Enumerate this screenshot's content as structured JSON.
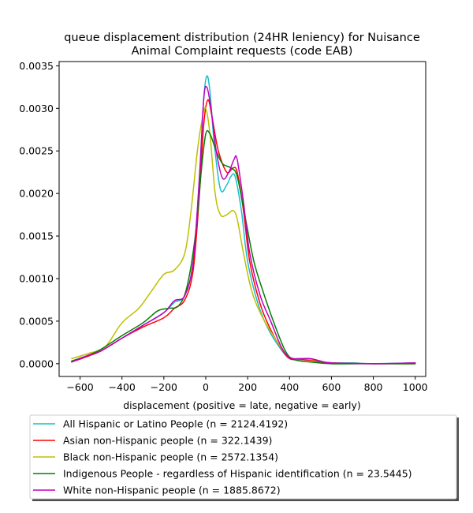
{
  "chart_data": {
    "type": "line",
    "title_lines": [
      "queue displacement distribution (24HR leniency) for Nuisance",
      "Animal Complaint  requests (code EAB)"
    ],
    "xlabel": "displacement (positive = late, negative = early)",
    "ylabel": "",
    "xlim": [
      -700,
      1050
    ],
    "ylim": [
      -0.00015,
      0.00355
    ],
    "x_ticks": [
      -600,
      -400,
      -200,
      0,
      200,
      400,
      600,
      800,
      1000
    ],
    "x_tick_labels": [
      "−600",
      "−400",
      "−200",
      "0",
      "200",
      "400",
      "600",
      "800",
      "1000"
    ],
    "y_ticks": [
      0.0,
      0.0005,
      0.001,
      0.0015,
      0.002,
      0.0025,
      0.003,
      0.0035
    ],
    "y_tick_labels": [
      "0.0000",
      "0.0005",
      "0.0010",
      "0.0015",
      "0.0020",
      "0.0025",
      "0.0030",
      "0.0035"
    ],
    "grid": false,
    "legend_position": "below the plot",
    "series": [
      {
        "name": "All Hispanic or Latino People (n = 2124.4192)",
        "color": "#17becf",
        "points": [
          [
            -640,
            3e-05
          ],
          [
            -560,
            0.0001
          ],
          [
            -500,
            0.00015
          ],
          [
            -400,
            0.0003
          ],
          [
            -300,
            0.00045
          ],
          [
            -200,
            0.0006
          ],
          [
            -150,
            0.00072
          ],
          [
            -100,
            0.0008
          ],
          [
            -60,
            0.0012
          ],
          [
            -30,
            0.0022
          ],
          [
            -10,
            0.0031
          ],
          [
            5,
            0.00338
          ],
          [
            20,
            0.0032
          ],
          [
            40,
            0.0026
          ],
          [
            70,
            0.00205
          ],
          [
            100,
            0.0021
          ],
          [
            120,
            0.0022
          ],
          [
            140,
            0.0022
          ],
          [
            170,
            0.0018
          ],
          [
            200,
            0.0012
          ],
          [
            250,
            0.0007
          ],
          [
            300,
            0.0004
          ],
          [
            350,
            0.0002
          ],
          [
            400,
            6e-05
          ],
          [
            450,
            5e-05
          ],
          [
            500,
            4e-05
          ],
          [
            550,
            2e-05
          ],
          [
            600,
            1e-05
          ],
          [
            700,
            1e-05
          ],
          [
            800,
            0.0
          ],
          [
            1000,
            1e-05
          ]
        ]
      },
      {
        "name": "Asian non-Hispanic people (n = 322.1439)",
        "color": "#ff0000",
        "points": [
          [
            -640,
            2e-05
          ],
          [
            -560,
            9e-05
          ],
          [
            -500,
            0.00015
          ],
          [
            -400,
            0.0003
          ],
          [
            -300,
            0.00043
          ],
          [
            -200,
            0.00054
          ],
          [
            -150,
            0.00065
          ],
          [
            -100,
            0.00075
          ],
          [
            -60,
            0.0011
          ],
          [
            -30,
            0.002
          ],
          [
            -10,
            0.0028
          ],
          [
            10,
            0.0031
          ],
          [
            30,
            0.0029
          ],
          [
            60,
            0.0025
          ],
          [
            100,
            0.00225
          ],
          [
            130,
            0.0023
          ],
          [
            150,
            0.00225
          ],
          [
            180,
            0.0018
          ],
          [
            210,
            0.0012
          ],
          [
            260,
            0.0007
          ],
          [
            310,
            0.0004
          ],
          [
            360,
            0.00018
          ],
          [
            400,
            6e-05
          ],
          [
            450,
            5e-05
          ],
          [
            500,
            4e-05
          ],
          [
            600,
            1e-05
          ],
          [
            800,
            0.0
          ],
          [
            1000,
            0.0
          ]
        ]
      },
      {
        "name": "Black non-Hispanic people (n = 2572.1354)",
        "color": "#bfbf00",
        "points": [
          [
            -640,
            6e-05
          ],
          [
            -560,
            0.00012
          ],
          [
            -480,
            0.0002
          ],
          [
            -400,
            0.00048
          ],
          [
            -320,
            0.00065
          ],
          [
            -260,
            0.00085
          ],
          [
            -200,
            0.00105
          ],
          [
            -150,
            0.0011
          ],
          [
            -100,
            0.0013
          ],
          [
            -70,
            0.0018
          ],
          [
            -40,
            0.0025
          ],
          [
            -15,
            0.0029
          ],
          [
            0,
            0.003
          ],
          [
            20,
            0.0027
          ],
          [
            45,
            0.002
          ],
          [
            70,
            0.00175
          ],
          [
            100,
            0.00175
          ],
          [
            130,
            0.0018
          ],
          [
            150,
            0.0017
          ],
          [
            180,
            0.0013
          ],
          [
            220,
            0.00085
          ],
          [
            270,
            0.00055
          ],
          [
            330,
            0.0003
          ],
          [
            380,
            0.00012
          ],
          [
            420,
            6e-05
          ],
          [
            470,
            6e-05
          ],
          [
            530,
            4e-05
          ],
          [
            600,
            1e-05
          ],
          [
            800,
            0.0
          ],
          [
            1000,
            0.0
          ]
        ]
      },
      {
        "name": "Indigenous People - regardless of Hispanic identification (n = 23.5445)",
        "color": "#008000",
        "points": [
          [
            -640,
            3e-05
          ],
          [
            -560,
            0.0001
          ],
          [
            -500,
            0.00017
          ],
          [
            -400,
            0.00033
          ],
          [
            -300,
            0.00048
          ],
          [
            -230,
            0.00062
          ],
          [
            -180,
            0.00065
          ],
          [
            -130,
            0.00068
          ],
          [
            -90,
            0.0009
          ],
          [
            -50,
            0.0015
          ],
          [
            -20,
            0.0023
          ],
          [
            0,
            0.0027
          ],
          [
            20,
            0.0027
          ],
          [
            50,
            0.0025
          ],
          [
            80,
            0.00235
          ],
          [
            120,
            0.0023
          ],
          [
            150,
            0.0022
          ],
          [
            190,
            0.0017
          ],
          [
            230,
            0.0012
          ],
          [
            280,
            0.0008
          ],
          [
            330,
            0.00045
          ],
          [
            380,
            0.00015
          ],
          [
            420,
            5e-05
          ],
          [
            500,
            2e-05
          ],
          [
            600,
            0.0
          ],
          [
            800,
            0.0
          ],
          [
            1000,
            0.0
          ]
        ]
      },
      {
        "name": "White non-Hispanic people (n = 1885.8672)",
        "color": "#bf00bf",
        "points": [
          [
            -640,
            2e-05
          ],
          [
            -560,
            0.0001
          ],
          [
            -500,
            0.00015
          ],
          [
            -400,
            0.0003
          ],
          [
            -300,
            0.00045
          ],
          [
            -200,
            0.0006
          ],
          [
            -150,
            0.00074
          ],
          [
            -100,
            0.0008
          ],
          [
            -60,
            0.0012
          ],
          [
            -30,
            0.0022
          ],
          [
            -10,
            0.0031
          ],
          [
            5,
            0.00325
          ],
          [
            25,
            0.003
          ],
          [
            50,
            0.0025
          ],
          [
            80,
            0.00218
          ],
          [
            110,
            0.00225
          ],
          [
            135,
            0.0024
          ],
          [
            150,
            0.0024
          ],
          [
            180,
            0.0019
          ],
          [
            210,
            0.0013
          ],
          [
            260,
            0.0008
          ],
          [
            310,
            0.0005
          ],
          [
            360,
            0.0002
          ],
          [
            400,
            7e-05
          ],
          [
            450,
            6e-05
          ],
          [
            500,
            6e-05
          ],
          [
            550,
            3e-05
          ],
          [
            600,
            1e-05
          ],
          [
            800,
            0.0
          ],
          [
            1000,
            1e-05
          ]
        ]
      }
    ]
  }
}
